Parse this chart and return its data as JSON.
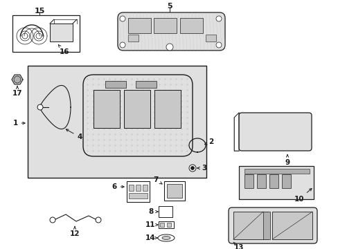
{
  "bg_color": "#ffffff",
  "lc": "#1a1a1a",
  "gray1": "#c8c8c8",
  "gray2": "#e0e0e0",
  "gray3": "#b0b0b0",
  "figsize": [
    4.89,
    3.6
  ],
  "dpi": 100
}
